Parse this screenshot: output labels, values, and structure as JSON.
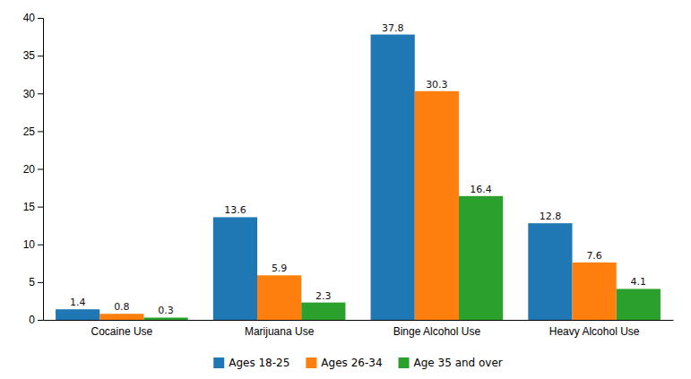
{
  "chart_data": {
    "type": "bar",
    "categories": [
      "Cocaine Use",
      "Marijuana Use",
      "Binge Alcohol Use",
      "Heavy Alcohol Use"
    ],
    "series": [
      {
        "name": "Ages 18-25",
        "values": [
          1.4,
          13.6,
          37.8,
          12.8
        ]
      },
      {
        "name": "Ages 26-34",
        "values": [
          0.8,
          5.9,
          30.3,
          7.6
        ]
      },
      {
        "name": "Age 35 and over",
        "values": [
          0.3,
          2.3,
          16.4,
          4.1
        ]
      }
    ],
    "ylim": [
      0,
      40
    ],
    "yticks": [
      0,
      5,
      10,
      15,
      20,
      25,
      30,
      35,
      40
    ],
    "grid": false,
    "legend": "bottom",
    "data_labels": true
  }
}
